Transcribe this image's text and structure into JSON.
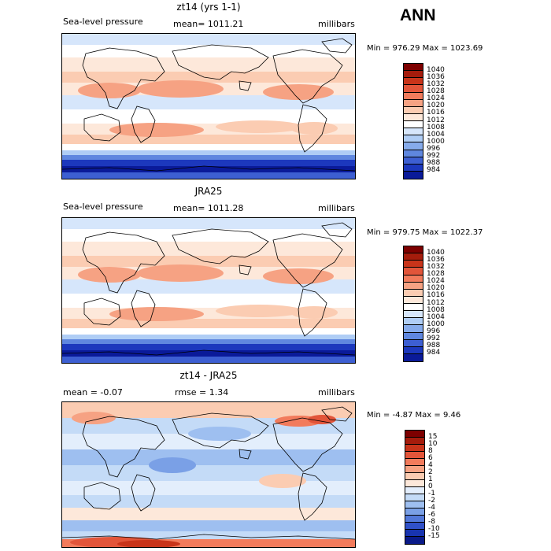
{
  "figure": {
    "season_label": "ANN"
  },
  "chart_data": [
    {
      "type": "heatmap",
      "title": "zt14 (yrs 1-1)",
      "variable_label": "Sea-level pressure",
      "stat_label": "mean= 1011.21",
      "units": "millibars",
      "minmax": "Min = 976.29 Max = 1023.69",
      "colorbar": {
        "levels": [
          "1040",
          "1036",
          "1032",
          "1028",
          "1024",
          "1020",
          "1016",
          "1012",
          "1008",
          "1004",
          "1000",
          "996",
          "992",
          "988",
          "984"
        ],
        "colors": [
          "#7d0000",
          "#a51c0c",
          "#c8341a",
          "#e2553a",
          "#f27b5c",
          "#f6a283",
          "#fbccb2",
          "#fde8da",
          "#ffffff",
          "#d6e6fb",
          "#afcdf5",
          "#86abeb",
          "#5f87df",
          "#3d5fd2",
          "#1c38bd",
          "#0a1a99"
        ]
      }
    },
    {
      "type": "heatmap",
      "title": "JRA25",
      "variable_label": "Sea-level pressure",
      "stat_label": "mean= 1011.28",
      "units": "millibars",
      "minmax": "Min = 979.75 Max = 1022.37",
      "colorbar": {
        "levels": [
          "1040",
          "1036",
          "1032",
          "1028",
          "1024",
          "1020",
          "1016",
          "1012",
          "1008",
          "1004",
          "1000",
          "996",
          "992",
          "988",
          "984"
        ],
        "colors": [
          "#7d0000",
          "#a51c0c",
          "#c8341a",
          "#e2553a",
          "#f27b5c",
          "#f6a283",
          "#fbccb2",
          "#fde8da",
          "#ffffff",
          "#d6e6fb",
          "#afcdf5",
          "#86abeb",
          "#5f87df",
          "#3d5fd2",
          "#1c38bd",
          "#0a1a99"
        ]
      }
    },
    {
      "type": "heatmap",
      "title": "zt14 - JRA25",
      "stat_label": "mean = -0.07",
      "rmse_label": "rmse = 1.34",
      "units": "millibars",
      "minmax": "Min = -4.87 Max = 9.46",
      "colorbar": {
        "levels": [
          "15",
          "10",
          "8",
          "6",
          "4",
          "2",
          "1",
          "0",
          "-1",
          "-2",
          "-4",
          "-6",
          "-8",
          "-10",
          "-15"
        ],
        "colors": [
          "#7d0000",
          "#a51c0c",
          "#c8341a",
          "#e2553a",
          "#f27b5c",
          "#f6a283",
          "#fbccb2",
          "#fde8da",
          "#e3eefc",
          "#c4dbf7",
          "#9ebff0",
          "#7aa0e6",
          "#5278d9",
          "#3051c8",
          "#1834b0",
          "#0a1a88"
        ]
      }
    }
  ]
}
